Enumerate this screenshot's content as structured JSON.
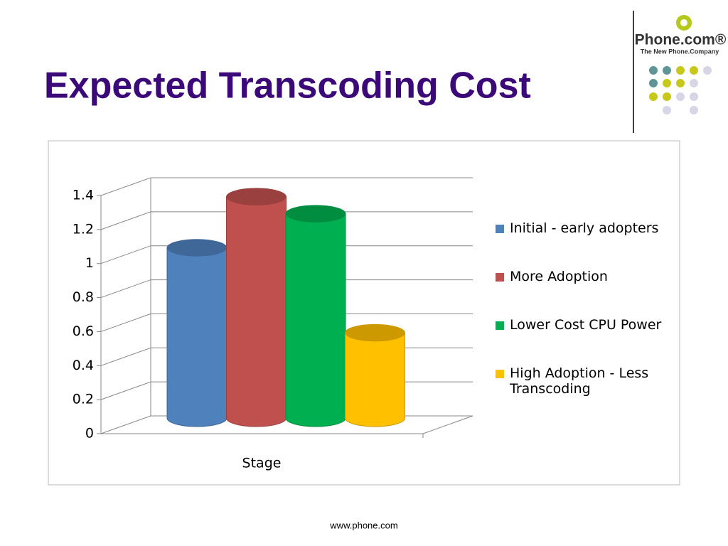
{
  "logo": {
    "name": "Phone.com®",
    "tagline": "The New Phone.Company"
  },
  "footer": "www.phone.com",
  "chart_data": {
    "type": "bar",
    "title": "Expected Transcoding Cost",
    "categories": [
      "Stage"
    ],
    "series": [
      {
        "name": "Initial - early adopters",
        "color": "#4f81bd",
        "values": [
          1.0
        ]
      },
      {
        "name": "More Adoption",
        "color": "#c0504d",
        "values": [
          1.3
        ]
      },
      {
        "name": "Lower Cost CPU Power",
        "color": "#00b050",
        "values": [
          1.2
        ]
      },
      {
        "name": "High Adoption - Less Transcoding",
        "color": "#ffc000",
        "values": [
          0.5
        ]
      }
    ],
    "ylim": [
      0,
      1.4
    ],
    "yticks": [
      0,
      0.2,
      0.4,
      0.6,
      0.8,
      1,
      1.2,
      1.4
    ],
    "grid": true,
    "legend": "right"
  }
}
